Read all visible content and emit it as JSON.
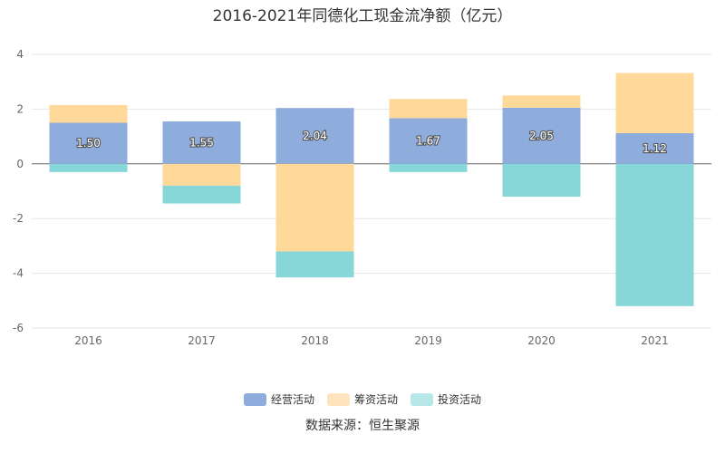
{
  "chart_data": {
    "type": "bar",
    "stacked": true,
    "title": "2016-2021年同德化工现金流净额（亿元）",
    "categories": [
      "2016",
      "2017",
      "2018",
      "2019",
      "2020",
      "2021"
    ],
    "series": [
      {
        "name": "经营活动",
        "color": "#8eacdc",
        "values": [
          1.5,
          1.55,
          2.04,
          1.67,
          2.05,
          1.12
        ],
        "labels": [
          "1.50",
          "1.55",
          "2.04",
          "1.67",
          "2.05",
          "1.12"
        ]
      },
      {
        "name": "筹资活动",
        "color": "#ffd99a",
        "values": [
          0.65,
          -0.8,
          -3.2,
          0.7,
          0.45,
          2.2
        ]
      },
      {
        "name": "投资活动",
        "color": "#87d7d9",
        "values": [
          -0.3,
          -0.65,
          -0.95,
          -0.3,
          -1.2,
          -5.2
        ]
      }
    ],
    "ylim": [
      -6,
      4
    ],
    "yticks": [
      "4",
      "2",
      "0",
      "-2",
      "-4",
      "-6"
    ],
    "ytick_values": [
      4,
      2,
      0,
      -2,
      -4,
      -6
    ],
    "grid": true,
    "legend_position": "bottom",
    "source": "数据来源：恒生聚源"
  }
}
